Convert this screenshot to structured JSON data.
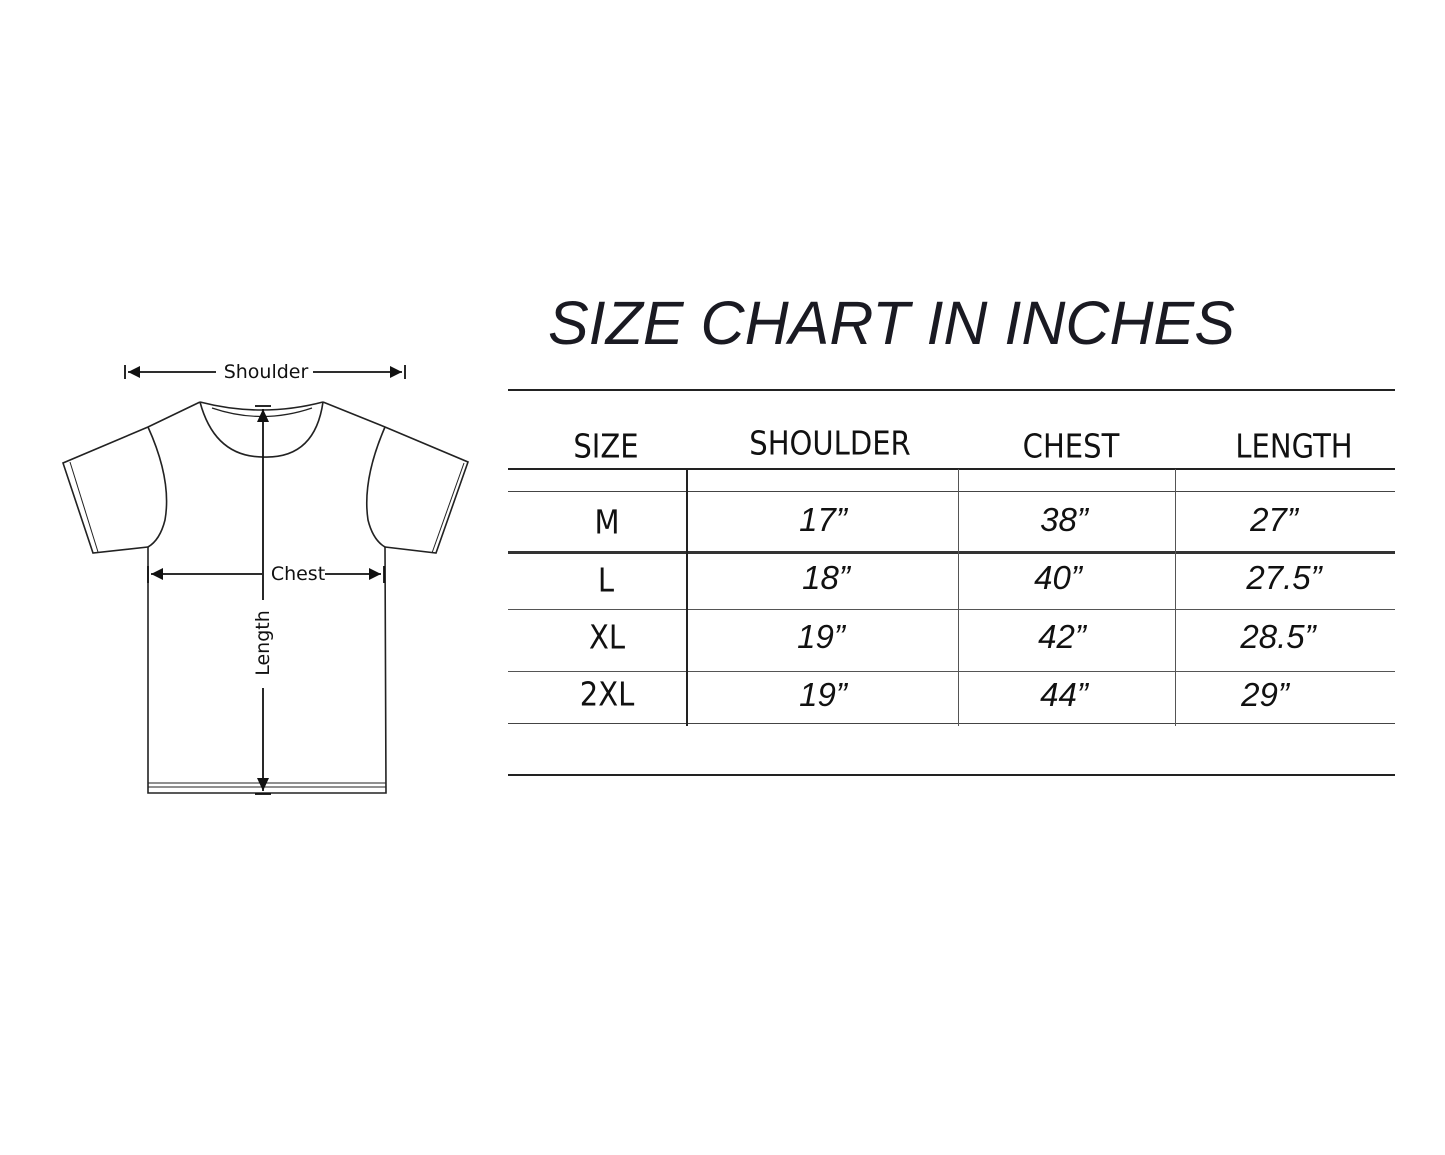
{
  "title": "SIZE CHART IN INCHES",
  "diagram": {
    "labels": {
      "shoulder": "Shoulder",
      "chest": "Chest",
      "length": "Length"
    }
  },
  "table": {
    "headers": [
      "SIZE",
      "SHOULDER",
      "CHEST",
      "LENGTH"
    ],
    "rows": [
      [
        "M",
        "17”",
        "38”",
        "27”"
      ],
      [
        "L",
        "18”",
        "40”",
        "27.5”"
      ],
      [
        "XL",
        "19”",
        "42”",
        "28.5”"
      ],
      [
        "2XL",
        "19”",
        "44”",
        "29”"
      ]
    ]
  }
}
